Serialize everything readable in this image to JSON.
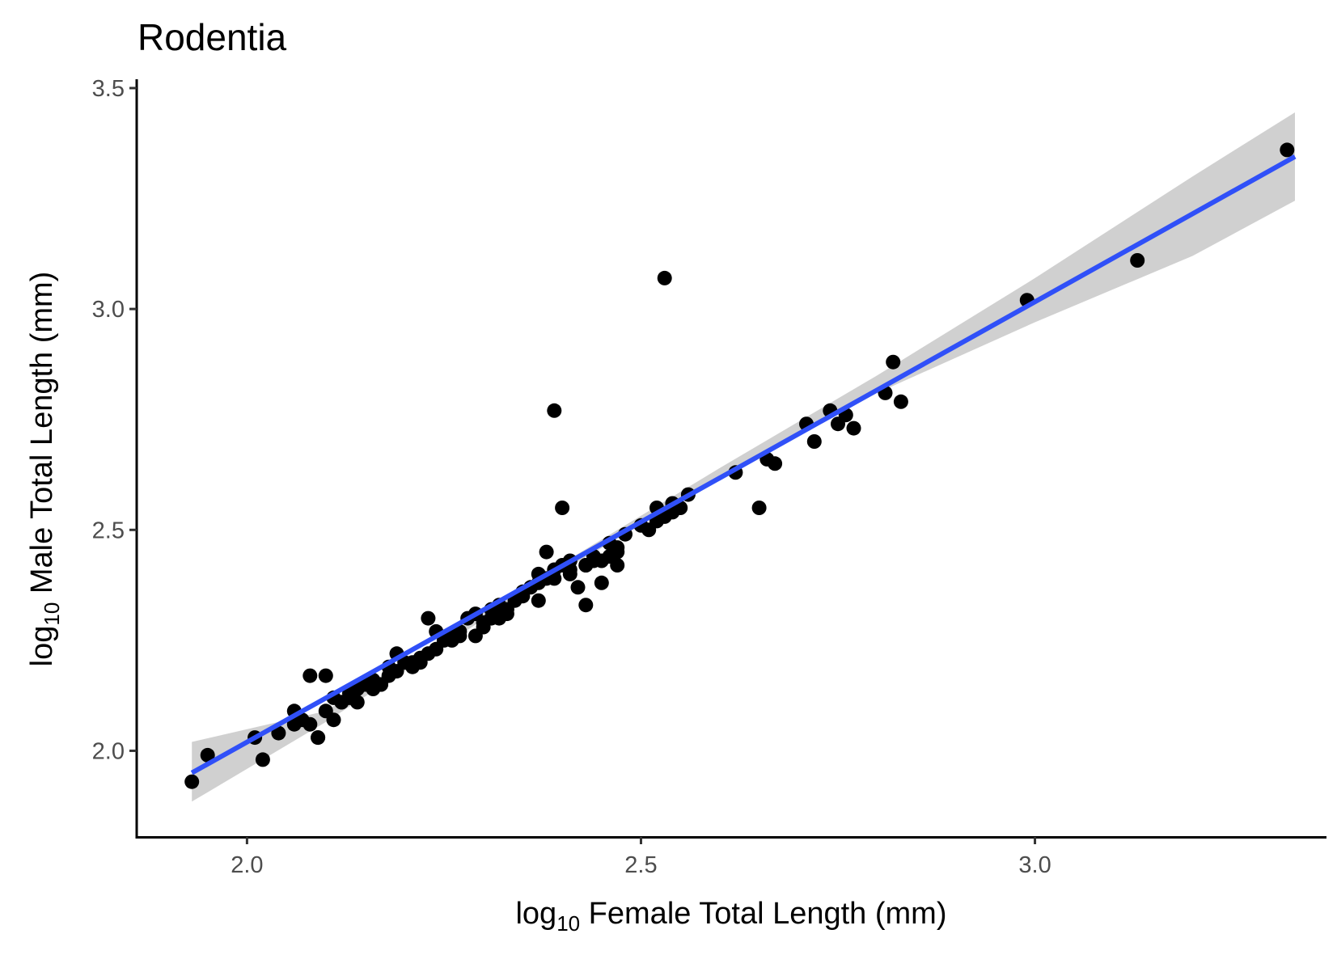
{
  "chart_data": {
    "type": "scatter",
    "title": "Rodentia",
    "xlabel": {
      "prefix": "log",
      "subscript": "10",
      "text": " Female Total Length (mm)"
    },
    "ylabel": {
      "prefix": "log",
      "subscript": "10",
      "text": " Male Total Length (mm)"
    },
    "xlim": [
      1.86,
      3.37
    ],
    "ylim": [
      1.805,
      3.52
    ],
    "x_ticks": [
      2.0,
      2.5,
      3.0
    ],
    "x_tick_labels": [
      "2.0",
      "2.5",
      "3.0"
    ],
    "y_ticks": [
      2.0,
      2.5,
      3.0,
      3.5
    ],
    "y_tick_labels": [
      "2.0",
      "2.5",
      "3.0",
      "3.5"
    ],
    "grid": false,
    "legend": "none",
    "colors": {
      "points": "#000000",
      "fit_line": "#3050f8",
      "confidence_band": "#c8c8c8"
    },
    "fit": {
      "method": "linear regression",
      "x_range": [
        1.93,
        3.33
      ],
      "line": [
        [
          1.93,
          1.95
        ],
        [
          3.33,
          3.345
        ]
      ],
      "ci_upper": [
        [
          1.93,
          2.02
        ],
        [
          2.1,
          2.09
        ],
        [
          2.35,
          2.37
        ],
        [
          2.6,
          2.64
        ],
        [
          2.8,
          2.85
        ],
        [
          3.0,
          3.07
        ],
        [
          3.2,
          3.3
        ],
        [
          3.33,
          3.445
        ]
      ],
      "ci_lower": [
        [
          1.93,
          1.885
        ],
        [
          2.1,
          2.065
        ],
        [
          2.35,
          2.355
        ],
        [
          2.6,
          2.615
        ],
        [
          2.8,
          2.81
        ],
        [
          3.0,
          2.97
        ],
        [
          3.2,
          3.12
        ],
        [
          3.33,
          3.245
        ]
      ]
    },
    "series": [
      {
        "x": [
          1.93,
          1.95,
          2.01,
          2.02,
          2.04,
          2.06,
          2.08,
          2.09,
          2.09,
          2.1,
          2.11,
          2.08,
          2.11,
          2.12,
          2.13,
          2.14,
          2.15,
          2.16,
          2.16,
          2.17,
          2.18,
          2.18,
          2.19,
          2.2,
          2.21,
          2.22,
          2.23,
          2.24,
          2.23,
          2.25,
          2.26,
          2.27,
          2.28,
          2.29,
          2.3,
          2.31,
          2.32,
          2.32,
          2.33,
          2.34,
          2.35,
          2.36,
          2.37,
          2.38,
          2.39,
          2.4,
          2.41,
          2.42,
          2.43,
          2.44,
          2.45,
          2.46,
          2.47,
          2.39,
          2.4,
          2.39,
          2.43,
          2.45,
          2.51,
          2.52,
          2.53,
          2.54,
          2.55,
          2.56,
          2.62,
          2.66,
          2.67,
          2.65,
          2.71,
          2.72,
          2.74,
          2.75,
          2.76,
          2.77,
          2.81,
          2.82,
          2.83,
          2.53,
          2.99,
          3.13,
          3.32,
          2.06,
          2.07,
          2.12,
          2.14,
          2.17,
          2.22,
          2.24,
          2.27,
          2.3,
          2.33,
          2.35,
          2.38,
          2.41,
          2.43,
          2.46,
          2.5,
          2.48,
          2.44,
          2.41,
          2.37,
          2.31,
          2.29,
          2.26,
          2.21,
          2.19,
          2.15,
          2.13,
          2.1,
          2.47,
          2.47,
          2.37,
          2.52,
          2.54
        ],
        "y": [
          1.93,
          1.99,
          2.03,
          1.98,
          2.04,
          2.09,
          2.06,
          2.03,
          2.03,
          2.17,
          2.07,
          2.17,
          2.12,
          2.11,
          2.13,
          2.14,
          2.15,
          2.16,
          2.14,
          2.15,
          2.19,
          2.17,
          2.22,
          2.2,
          2.19,
          2.21,
          2.22,
          2.27,
          2.3,
          2.25,
          2.26,
          2.27,
          2.3,
          2.31,
          2.28,
          2.32,
          2.33,
          2.3,
          2.31,
          2.34,
          2.36,
          2.37,
          2.34,
          2.45,
          2.41,
          2.42,
          2.4,
          2.37,
          2.42,
          2.43,
          2.43,
          2.47,
          2.46,
          2.77,
          2.55,
          2.39,
          2.33,
          2.38,
          2.5,
          2.55,
          2.53,
          2.56,
          2.55,
          2.58,
          2.63,
          2.66,
          2.65,
          2.55,
          2.74,
          2.7,
          2.77,
          2.74,
          2.76,
          2.73,
          2.81,
          2.88,
          2.79,
          3.07,
          3.02,
          3.11,
          3.36,
          2.06,
          2.07,
          2.11,
          2.11,
          2.15,
          2.2,
          2.23,
          2.26,
          2.29,
          2.32,
          2.35,
          2.39,
          2.41,
          2.42,
          2.44,
          2.51,
          2.49,
          2.44,
          2.43,
          2.38,
          2.3,
          2.26,
          2.25,
          2.2,
          2.18,
          2.15,
          2.12,
          2.09,
          2.42,
          2.45,
          2.4,
          2.52,
          2.54
        ]
      }
    ]
  }
}
